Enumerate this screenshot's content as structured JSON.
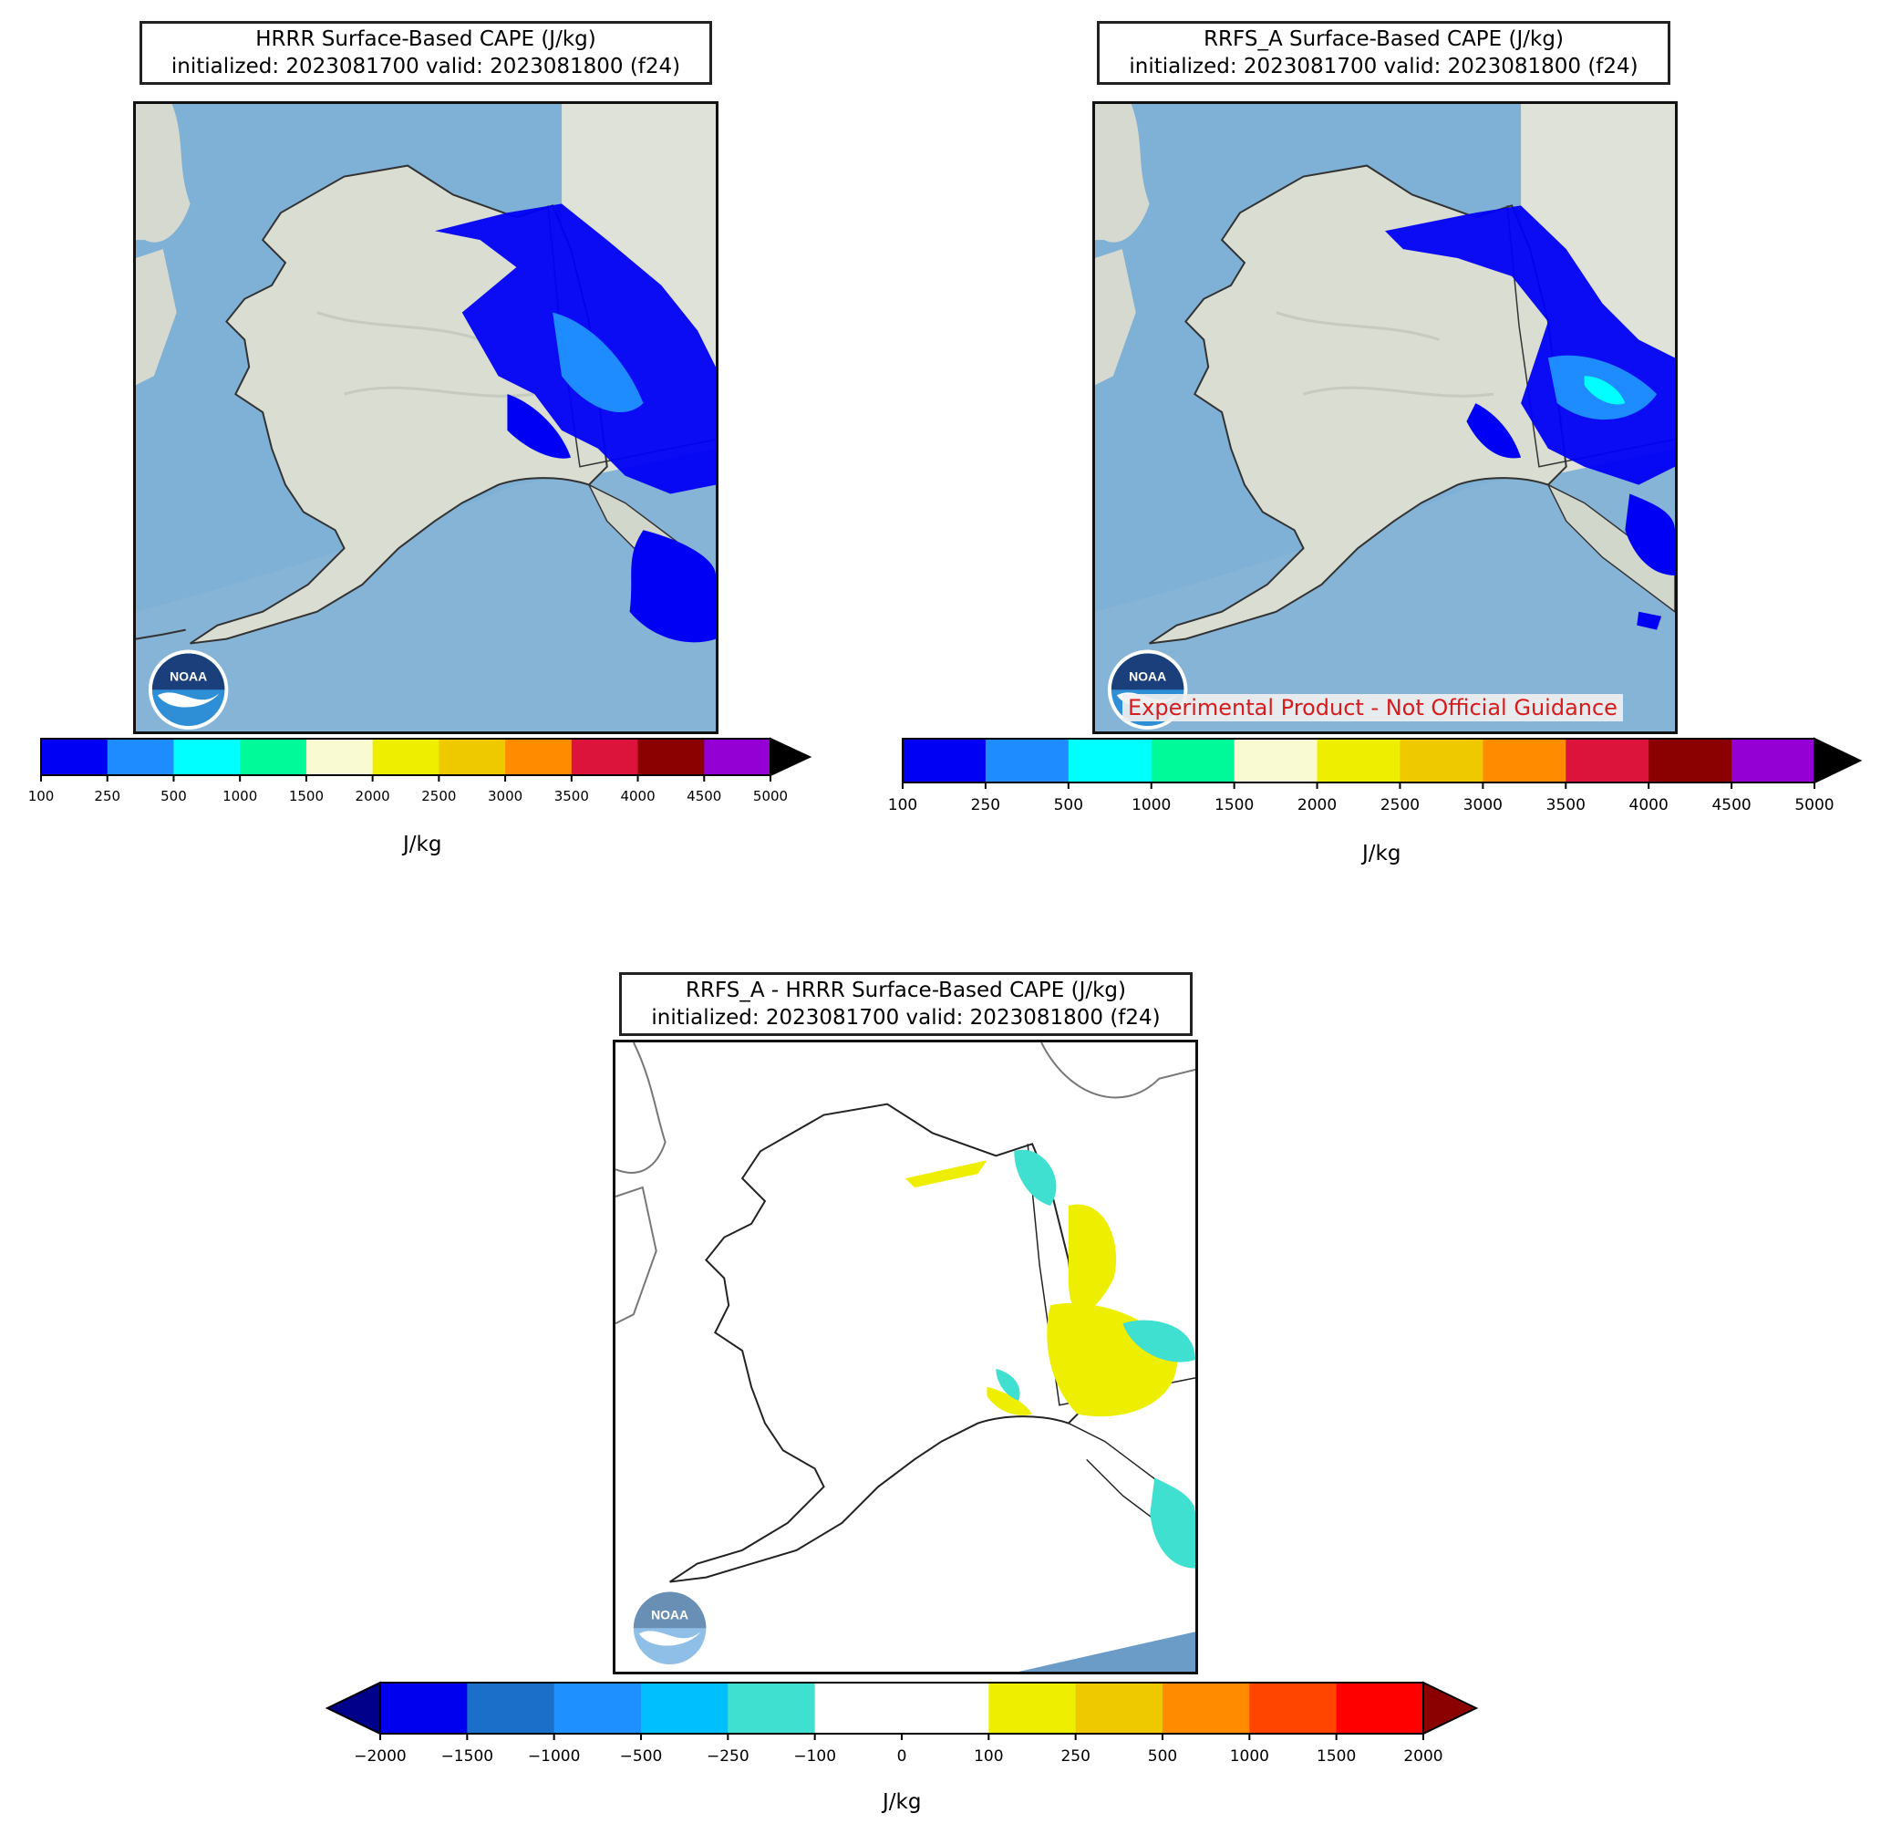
{
  "panels": {
    "hrrr": {
      "title_line1": "HRRR Surface-Based CAPE (J/kg)",
      "title_line2": "initialized: 2023081700 valid: 2023081800 (f24)"
    },
    "rrfs": {
      "title_line1": "RRFS_A Surface-Based CAPE (J/kg)",
      "title_line2": "initialized: 2023081700 valid: 2023081800 (f24)",
      "disclaimer": "Experimental Product - Not Official Guidance"
    },
    "diff": {
      "title_line1": "RRFS_A - HRRR Surface-Based CAPE (J/kg)",
      "title_line2": "initialized: 2023081700 valid: 2023081800 (f24)"
    }
  },
  "logo": {
    "icon": "noaa-logo",
    "text": "NOAA"
  },
  "colorbars": {
    "cape": {
      "unit": "J/kg",
      "ticks": [
        "100",
        "250",
        "500",
        "1000",
        "1500",
        "2000",
        "2500",
        "3000",
        "3500",
        "4000",
        "4500",
        "5000"
      ],
      "colors": [
        "#0000f5",
        "#1e8cff",
        "#00ffff",
        "#00fa9a",
        "#fafad2",
        "#eeee00",
        "#eec900",
        "#ff8c00",
        "#dc143c",
        "#8b0000",
        "#9400d3"
      ],
      "extend": "max",
      "extend_color": "#000000"
    },
    "diff": {
      "unit": "J/kg",
      "ticks": [
        "−2000",
        "−1500",
        "−1000",
        "−500",
        "−250",
        "−100",
        "0",
        "100",
        "250",
        "500",
        "1000",
        "1500",
        "2000"
      ],
      "colors": [
        "#0000ee",
        "#1c6fc9",
        "#1e90ff",
        "#00bfff",
        "#40e0d0",
        "#ffffff",
        "#ffffff",
        "#eeee00",
        "#eec900",
        "#ff8c00",
        "#ff4500",
        "#ff0000"
      ],
      "extend": "both",
      "extend_low_color": "#00008b",
      "extend_high_color": "#8b0000"
    }
  },
  "colors": {
    "ocean": "#7fb0d6",
    "land": "#d9ddd2",
    "coast": "#333333",
    "cape_blue": "#0000f5",
    "cape_lightblue": "#1e8cff",
    "cape_cyan": "#00ffff",
    "diff_yellow": "#eeee00",
    "diff_turquoise": "#40e0d0"
  }
}
